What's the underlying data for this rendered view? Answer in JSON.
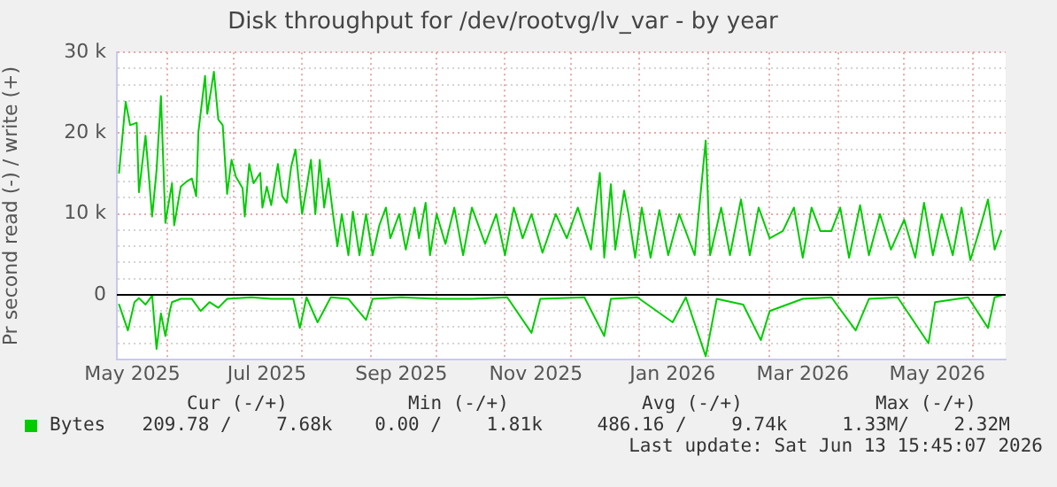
{
  "chart_data": {
    "type": "line",
    "title": "Disk throughput for /dev/rootvg/lv_var - by year",
    "ylabel": "Pr second read (-) / write (+)",
    "xlim": [
      "2025-05-09",
      "2026-06-16"
    ],
    "xticks": [
      {
        "value": "2025-05-16",
        "label": "May 2025"
      },
      {
        "value": "2025-06-01",
        "label": null
      },
      {
        "value": "2025-07-01",
        "label": null
      },
      {
        "value": "2025-07-16",
        "label": "Jul 2025"
      },
      {
        "value": "2025-08-01",
        "label": null
      },
      {
        "value": "2025-09-01",
        "label": null
      },
      {
        "value": "2025-09-15",
        "label": "Sep 2025"
      },
      {
        "value": "2025-10-01",
        "label": null
      },
      {
        "value": "2025-11-01",
        "label": null
      },
      {
        "value": "2025-11-15",
        "label": "Nov 2025"
      },
      {
        "value": "2025-12-01",
        "label": null
      },
      {
        "value": "2026-01-01",
        "label": null
      },
      {
        "value": "2026-01-16",
        "label": "Jan 2026"
      },
      {
        "value": "2026-02-01",
        "label": null
      },
      {
        "value": "2026-03-01",
        "label": null
      },
      {
        "value": "2026-03-16",
        "label": "Mar 2026"
      },
      {
        "value": "2026-04-01",
        "label": null
      },
      {
        "value": "2026-05-01",
        "label": null
      },
      {
        "value": "2026-05-16",
        "label": "May 2026"
      },
      {
        "value": "2026-06-01",
        "label": null
      }
    ],
    "ylim": [
      -8000,
      30000
    ],
    "yticks": [
      {
        "value": -8000,
        "label": null
      },
      {
        "value": -6000,
        "label": null
      },
      {
        "value": -4000,
        "label": null
      },
      {
        "value": -2000,
        "label": null
      },
      0,
      {
        "value": 2000,
        "label": null
      },
      {
        "value": 4000,
        "label": null
      },
      {
        "value": 6000,
        "label": null
      },
      {
        "value": 8000,
        "label": null
      },
      {
        "value": 10000,
        "label": "10 k"
      },
      {
        "value": 12000,
        "label": null
      },
      {
        "value": 14000,
        "label": null
      },
      {
        "value": 16000,
        "label": null
      },
      {
        "value": 18000,
        "label": null
      },
      {
        "value": 20000,
        "label": "20 k"
      },
      {
        "value": 22000,
        "label": null
      },
      {
        "value": 24000,
        "label": null
      },
      {
        "value": 26000,
        "label": null
      },
      {
        "value": 28000,
        "label": null
      },
      {
        "value": 30000,
        "label": "30 k"
      }
    ],
    "grid": true,
    "legend": "bottom",
    "marker": "none",
    "line_style": "solid",
    "ref_lines": [
      {
        "axis": "y",
        "value": 0,
        "color": "#000000"
      }
    ],
    "series": [
      {
        "name": "Bytes",
        "color": "#00cc00",
        "x": [
          "2025-05-10",
          "2025-05-13",
          "2025-05-15",
          "2025-05-18",
          "2025-05-19",
          "2025-05-22",
          "2025-05-25",
          "2025-05-27",
          "2025-05-29",
          "2025-05-31",
          "2025-06-03",
          "2025-06-04",
          "2025-06-07",
          "2025-06-10",
          "2025-06-12",
          "2025-06-14",
          "2025-06-15",
          "2025-06-18",
          "2025-06-19",
          "2025-06-22",
          "2025-06-24",
          "2025-06-26",
          "2025-06-28",
          "2025-06-30",
          "2025-07-02",
          "2025-07-05",
          "2025-07-06",
          "2025-07-08",
          "2025-07-10",
          "2025-07-13",
          "2025-07-14",
          "2025-07-16",
          "2025-07-18",
          "2025-07-21",
          "2025-07-23",
          "2025-07-25",
          "2025-07-27",
          "2025-07-29",
          "2025-08-01",
          "2025-08-03",
          "2025-08-05",
          "2025-08-07",
          "2025-08-09",
          "2025-08-11",
          "2025-08-13",
          "2025-08-15",
          "2025-08-17",
          "2025-08-19",
          "2025-08-22",
          "2025-08-24",
          "2025-08-27",
          "2025-08-30",
          "2025-09-02",
          "2025-09-05",
          "2025-09-08",
          "2025-09-10",
          "2025-09-14",
          "2025-09-17",
          "2025-09-21",
          "2025-09-23",
          "2025-09-26",
          "2025-09-28",
          "2025-10-01",
          "2025-10-05",
          "2025-10-09",
          "2025-10-13",
          "2025-10-17",
          "2025-10-23",
          "2025-10-28",
          "2025-11-01",
          "2025-11-05",
          "2025-11-09",
          "2025-11-13",
          "2025-11-18",
          "2025-11-24",
          "2025-11-29",
          "2025-12-04",
          "2025-12-10",
          "2025-12-14",
          "2025-12-16",
          "2025-12-19",
          "2025-12-21",
          "2025-12-25",
          "2025-12-27",
          "2025-12-30",
          "2026-01-02",
          "2026-01-06",
          "2026-01-10",
          "2026-01-14",
          "2026-01-19",
          "2026-01-26",
          "2026-01-31",
          "2026-02-02",
          "2026-02-07",
          "2026-02-11",
          "2026-02-16",
          "2026-02-20",
          "2026-02-24",
          "2026-03-01",
          "2026-03-07",
          "2026-03-12",
          "2026-03-16",
          "2026-03-20",
          "2026-03-24",
          "2026-03-29",
          "2026-04-02",
          "2026-04-06",
          "2026-04-11",
          "2026-04-15",
          "2026-04-20",
          "2026-04-25",
          "2026-05-01",
          "2026-05-06",
          "2026-05-10",
          "2026-05-14",
          "2026-05-18",
          "2026-05-23",
          "2026-05-27",
          "2026-05-31",
          "2026-06-04",
          "2026-06-08",
          "2026-06-11",
          "2026-06-14"
        ],
        "values": [
          15100,
          23900,
          21000,
          21300,
          12700,
          19700,
          9700,
          15400,
          24600,
          8900,
          13800,
          8600,
          13400,
          14100,
          14400,
          12200,
          20200,
          27100,
          22400,
          27600,
          21700,
          21000,
          12500,
          16700,
          14600,
          13200,
          9700,
          16200,
          13800,
          15100,
          10800,
          13400,
          11100,
          16200,
          12200,
          11400,
          15800,
          18000,
          10000,
          13200,
          16700,
          10000,
          16700,
          10800,
          14400,
          10000,
          6000,
          10000,
          4900,
          10300,
          4900,
          10000,
          4900,
          8600,
          10800,
          7000,
          10000,
          5600,
          10800,
          7000,
          11400,
          4900,
          10000,
          6300,
          10800,
          4900,
          10800,
          6300,
          10000,
          4900,
          10800,
          7000,
          10000,
          5200,
          10000,
          7000,
          10800,
          5600,
          15100,
          4600,
          13700,
          5600,
          12900,
          10000,
          4600,
          10800,
          4600,
          10500,
          4900,
          10000,
          4900,
          19100,
          4900,
          10800,
          4900,
          11800,
          4900,
          10800,
          7000,
          7900,
          10800,
          4600,
          10800,
          7900,
          7900,
          10800,
          4600,
          11100,
          4900,
          10000,
          5600,
          9300,
          4600,
          11400,
          4900,
          10000,
          4900,
          10800,
          4300,
          7900,
          11800,
          5600,
          7900
        ]
      },
      {
        "color": "#00cc00",
        "x": [
          "2025-05-10",
          "2025-05-14",
          "2025-05-17",
          "2025-05-19",
          "2025-05-22",
          "2025-05-25",
          "2025-05-27",
          "2025-05-29",
          "2025-05-31",
          "2025-06-02",
          "2025-06-03",
          "2025-06-07",
          "2025-06-12",
          "2025-06-16",
          "2025-06-20",
          "2025-06-24",
          "2025-06-28",
          "2025-07-09",
          "2025-07-18",
          "2025-07-28",
          "2025-07-31",
          "2025-08-03",
          "2025-08-08",
          "2025-08-14",
          "2025-08-22",
          "2025-08-30",
          "2025-09-02",
          "2025-09-15",
          "2025-10-01",
          "2025-10-17",
          "2025-11-02",
          "2025-11-13",
          "2025-11-17",
          "2025-12-07",
          "2025-12-16",
          "2025-12-19",
          "2025-12-31",
          "2026-01-16",
          "2026-01-22",
          "2026-01-31",
          "2026-02-05",
          "2026-02-17",
          "2026-02-25",
          "2026-03-01",
          "2026-03-16",
          "2026-03-29",
          "2026-04-09",
          "2026-04-15",
          "2026-04-28",
          "2026-05-12",
          "2026-05-15",
          "2026-05-30",
          "2026-06-08",
          "2026-06-11",
          "2026-06-14"
        ],
        "values": [
          -1200,
          -4400,
          -900,
          -400,
          -1200,
          -100,
          -6700,
          -2300,
          -5100,
          -2000,
          -900,
          -500,
          -500,
          -2000,
          -900,
          -1600,
          -500,
          -300,
          -500,
          -500,
          -4100,
          -300,
          -3400,
          -300,
          -500,
          -3100,
          -500,
          -300,
          -500,
          -500,
          -300,
          -4700,
          -500,
          -300,
          -5100,
          -500,
          -300,
          -3400,
          -300,
          -7600,
          -500,
          -1200,
          -5600,
          -2000,
          -500,
          -300,
          -4400,
          -500,
          -300,
          -6000,
          -900,
          -300,
          -4100,
          -300,
          -100
        ]
      }
    ],
    "annotations": [
      "Cur (-/+)",
      "Min (-/+)",
      "Avg (-/+)",
      "Max (-/+)",
      "209.78 /    7.68k",
      "0.00 /    1.81k",
      "486.16 /    9.74k",
      "1.33M/    2.32M",
      "Last update: Sat Jun 13 15:45:07 2026"
    ]
  }
}
